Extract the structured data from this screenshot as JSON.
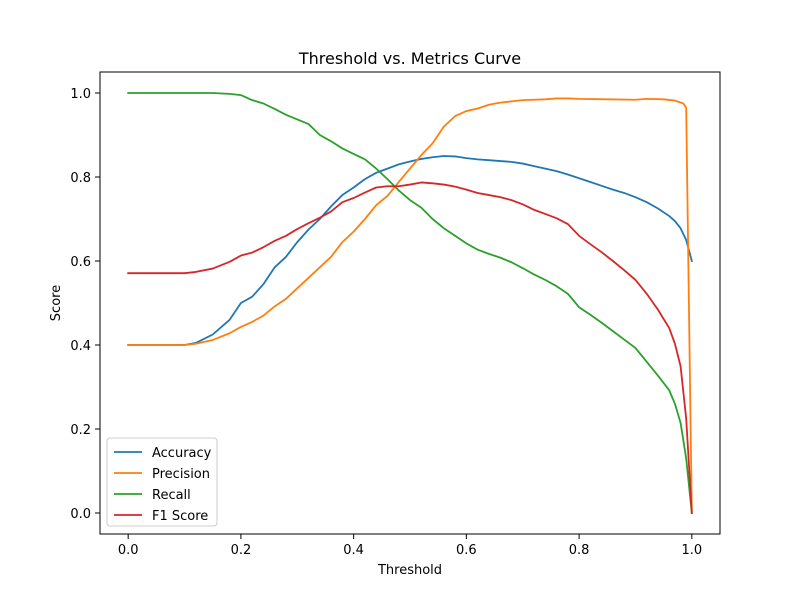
{
  "chart_data": {
    "type": "line",
    "title": "Threshold vs. Metrics Curve",
    "xlabel": "Threshold",
    "ylabel": "Score",
    "xlim": [
      -0.05,
      1.05
    ],
    "ylim": [
      -0.05,
      1.05
    ],
    "xticks": [
      0.0,
      0.2,
      0.4,
      0.6,
      0.8,
      1.0
    ],
    "xtick_labels": [
      "0.0",
      "0.2",
      "0.4",
      "0.6",
      "0.8",
      "1.0"
    ],
    "yticks": [
      0.0,
      0.2,
      0.4,
      0.6,
      0.8,
      1.0
    ],
    "ytick_labels": [
      "0.0",
      "0.2",
      "0.4",
      "0.6",
      "0.8",
      "1.0"
    ],
    "grid": false,
    "legend": "lower-left",
    "series": [
      {
        "name": "Accuracy",
        "color": "#1f77b4",
        "points": [
          [
            0.0,
            0.4
          ],
          [
            0.05,
            0.4
          ],
          [
            0.1,
            0.4
          ],
          [
            0.12,
            0.405
          ],
          [
            0.15,
            0.425
          ],
          [
            0.18,
            0.46
          ],
          [
            0.2,
            0.5
          ],
          [
            0.22,
            0.515
          ],
          [
            0.24,
            0.545
          ],
          [
            0.26,
            0.585
          ],
          [
            0.28,
            0.61
          ],
          [
            0.3,
            0.645
          ],
          [
            0.32,
            0.675
          ],
          [
            0.34,
            0.7
          ],
          [
            0.36,
            0.73
          ],
          [
            0.38,
            0.757
          ],
          [
            0.4,
            0.775
          ],
          [
            0.42,
            0.795
          ],
          [
            0.44,
            0.81
          ],
          [
            0.46,
            0.82
          ],
          [
            0.48,
            0.83
          ],
          [
            0.5,
            0.837
          ],
          [
            0.52,
            0.843
          ],
          [
            0.54,
            0.847
          ],
          [
            0.56,
            0.85
          ],
          [
            0.58,
            0.849
          ],
          [
            0.6,
            0.845
          ],
          [
            0.62,
            0.842
          ],
          [
            0.64,
            0.84
          ],
          [
            0.66,
            0.838
          ],
          [
            0.68,
            0.836
          ],
          [
            0.7,
            0.832
          ],
          [
            0.72,
            0.826
          ],
          [
            0.74,
            0.82
          ],
          [
            0.76,
            0.814
          ],
          [
            0.78,
            0.806
          ],
          [
            0.8,
            0.797
          ],
          [
            0.82,
            0.788
          ],
          [
            0.84,
            0.779
          ],
          [
            0.86,
            0.77
          ],
          [
            0.88,
            0.762
          ],
          [
            0.9,
            0.752
          ],
          [
            0.92,
            0.74
          ],
          [
            0.94,
            0.725
          ],
          [
            0.96,
            0.707
          ],
          [
            0.97,
            0.695
          ],
          [
            0.98,
            0.678
          ],
          [
            0.99,
            0.65
          ],
          [
            1.0,
            0.6
          ]
        ]
      },
      {
        "name": "Precision",
        "color": "#ff7f0e",
        "points": [
          [
            0.0,
            0.4
          ],
          [
            0.05,
            0.4
          ],
          [
            0.1,
            0.4
          ],
          [
            0.12,
            0.403
          ],
          [
            0.15,
            0.412
          ],
          [
            0.18,
            0.428
          ],
          [
            0.2,
            0.443
          ],
          [
            0.22,
            0.455
          ],
          [
            0.24,
            0.47
          ],
          [
            0.26,
            0.492
          ],
          [
            0.28,
            0.51
          ],
          [
            0.3,
            0.535
          ],
          [
            0.32,
            0.56
          ],
          [
            0.34,
            0.585
          ],
          [
            0.36,
            0.61
          ],
          [
            0.38,
            0.645
          ],
          [
            0.4,
            0.67
          ],
          [
            0.42,
            0.7
          ],
          [
            0.44,
            0.733
          ],
          [
            0.46,
            0.755
          ],
          [
            0.48,
            0.788
          ],
          [
            0.5,
            0.82
          ],
          [
            0.52,
            0.852
          ],
          [
            0.54,
            0.88
          ],
          [
            0.56,
            0.92
          ],
          [
            0.58,
            0.945
          ],
          [
            0.6,
            0.957
          ],
          [
            0.62,
            0.963
          ],
          [
            0.64,
            0.972
          ],
          [
            0.66,
            0.977
          ],
          [
            0.68,
            0.98
          ],
          [
            0.7,
            0.983
          ],
          [
            0.72,
            0.984
          ],
          [
            0.74,
            0.985
          ],
          [
            0.76,
            0.987
          ],
          [
            0.78,
            0.987
          ],
          [
            0.8,
            0.986
          ],
          [
            0.85,
            0.985
          ],
          [
            0.9,
            0.984
          ],
          [
            0.92,
            0.986
          ],
          [
            0.95,
            0.985
          ],
          [
            0.97,
            0.982
          ],
          [
            0.985,
            0.975
          ],
          [
            0.99,
            0.965
          ],
          [
            1.0,
            0.0
          ]
        ]
      },
      {
        "name": "Recall",
        "color": "#2ca02c",
        "points": [
          [
            0.0,
            1.0
          ],
          [
            0.05,
            1.0
          ],
          [
            0.1,
            1.0
          ],
          [
            0.15,
            1.0
          ],
          [
            0.18,
            0.998
          ],
          [
            0.2,
            0.995
          ],
          [
            0.22,
            0.983
          ],
          [
            0.24,
            0.975
          ],
          [
            0.26,
            0.962
          ],
          [
            0.28,
            0.948
          ],
          [
            0.3,
            0.937
          ],
          [
            0.32,
            0.926
          ],
          [
            0.34,
            0.9
          ],
          [
            0.36,
            0.885
          ],
          [
            0.38,
            0.868
          ],
          [
            0.4,
            0.855
          ],
          [
            0.42,
            0.842
          ],
          [
            0.44,
            0.82
          ],
          [
            0.46,
            0.795
          ],
          [
            0.48,
            0.768
          ],
          [
            0.5,
            0.745
          ],
          [
            0.52,
            0.727
          ],
          [
            0.54,
            0.7
          ],
          [
            0.56,
            0.678
          ],
          [
            0.58,
            0.66
          ],
          [
            0.6,
            0.642
          ],
          [
            0.62,
            0.627
          ],
          [
            0.64,
            0.617
          ],
          [
            0.66,
            0.608
          ],
          [
            0.68,
            0.597
          ],
          [
            0.7,
            0.583
          ],
          [
            0.72,
            0.568
          ],
          [
            0.74,
            0.555
          ],
          [
            0.76,
            0.54
          ],
          [
            0.78,
            0.522
          ],
          [
            0.8,
            0.49
          ],
          [
            0.82,
            0.472
          ],
          [
            0.84,
            0.453
          ],
          [
            0.86,
            0.433
          ],
          [
            0.88,
            0.413
          ],
          [
            0.9,
            0.393
          ],
          [
            0.92,
            0.36
          ],
          [
            0.94,
            0.327
          ],
          [
            0.96,
            0.292
          ],
          [
            0.97,
            0.26
          ],
          [
            0.98,
            0.215
          ],
          [
            0.99,
            0.13
          ],
          [
            1.0,
            0.0
          ]
        ]
      },
      {
        "name": "F1 Score",
        "color": "#d62728",
        "points": [
          [
            0.0,
            0.571
          ],
          [
            0.05,
            0.571
          ],
          [
            0.1,
            0.571
          ],
          [
            0.12,
            0.574
          ],
          [
            0.15,
            0.582
          ],
          [
            0.18,
            0.598
          ],
          [
            0.2,
            0.613
          ],
          [
            0.22,
            0.62
          ],
          [
            0.24,
            0.633
          ],
          [
            0.26,
            0.648
          ],
          [
            0.28,
            0.66
          ],
          [
            0.3,
            0.676
          ],
          [
            0.32,
            0.69
          ],
          [
            0.34,
            0.703
          ],
          [
            0.36,
            0.718
          ],
          [
            0.38,
            0.74
          ],
          [
            0.4,
            0.75
          ],
          [
            0.42,
            0.763
          ],
          [
            0.44,
            0.775
          ],
          [
            0.46,
            0.778
          ],
          [
            0.48,
            0.778
          ],
          [
            0.5,
            0.782
          ],
          [
            0.52,
            0.787
          ],
          [
            0.54,
            0.785
          ],
          [
            0.56,
            0.782
          ],
          [
            0.58,
            0.777
          ],
          [
            0.6,
            0.77
          ],
          [
            0.62,
            0.762
          ],
          [
            0.64,
            0.757
          ],
          [
            0.66,
            0.752
          ],
          [
            0.68,
            0.745
          ],
          [
            0.7,
            0.735
          ],
          [
            0.72,
            0.722
          ],
          [
            0.74,
            0.712
          ],
          [
            0.76,
            0.702
          ],
          [
            0.78,
            0.688
          ],
          [
            0.8,
            0.66
          ],
          [
            0.82,
            0.64
          ],
          [
            0.84,
            0.621
          ],
          [
            0.86,
            0.6
          ],
          [
            0.88,
            0.578
          ],
          [
            0.9,
            0.555
          ],
          [
            0.92,
            0.522
          ],
          [
            0.94,
            0.484
          ],
          [
            0.96,
            0.44
          ],
          [
            0.97,
            0.403
          ],
          [
            0.98,
            0.35
          ],
          [
            0.99,
            0.225
          ],
          [
            1.0,
            0.0
          ]
        ]
      }
    ]
  }
}
